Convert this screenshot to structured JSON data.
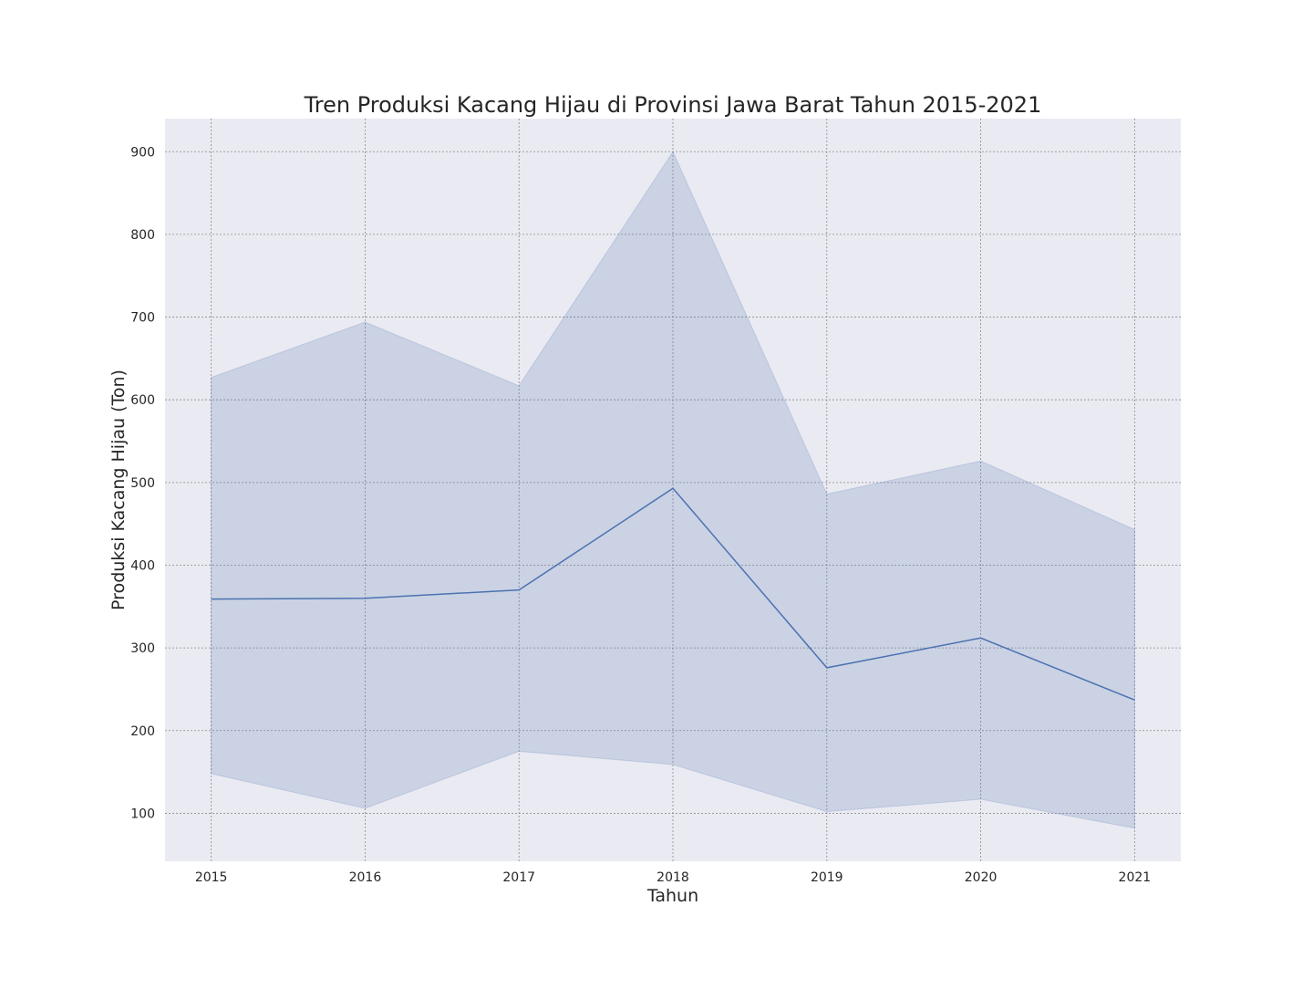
{
  "chart_data": {
    "type": "line",
    "title": "Tren Produksi Kacang Hijau di Provinsi Jawa Barat Tahun 2015-2021",
    "xlabel": "Tahun",
    "ylabel": "Produksi Kacang Hijau (Ton)",
    "x": [
      2015,
      2016,
      2017,
      2018,
      2019,
      2020,
      2021
    ],
    "x_tick_labels": [
      "2015",
      "2016",
      "2017",
      "2018",
      "2019",
      "2020",
      "2021"
    ],
    "y_ticks": [
      100,
      200,
      300,
      400,
      500,
      600,
      700,
      800,
      900
    ],
    "y_tick_labels": [
      "100",
      "200",
      "300",
      "400",
      "500",
      "600",
      "700",
      "800",
      "900"
    ],
    "xlim": [
      2014.7,
      2021.3
    ],
    "ylim": [
      42,
      940
    ],
    "grid": true,
    "series": [
      {
        "values": [
          359,
          360,
          370,
          493,
          276,
          312,
          237
        ],
        "ci_lower": [
          148,
          106,
          175,
          159,
          102,
          117,
          82
        ],
        "ci_upper": [
          627,
          694,
          617,
          900,
          486,
          526,
          443
        ]
      }
    ],
    "colors": {
      "line": "#4c72b0",
      "band": "#4c72b0",
      "plot_background": "#eaeaf2",
      "grid": "#8c8c8c"
    }
  }
}
